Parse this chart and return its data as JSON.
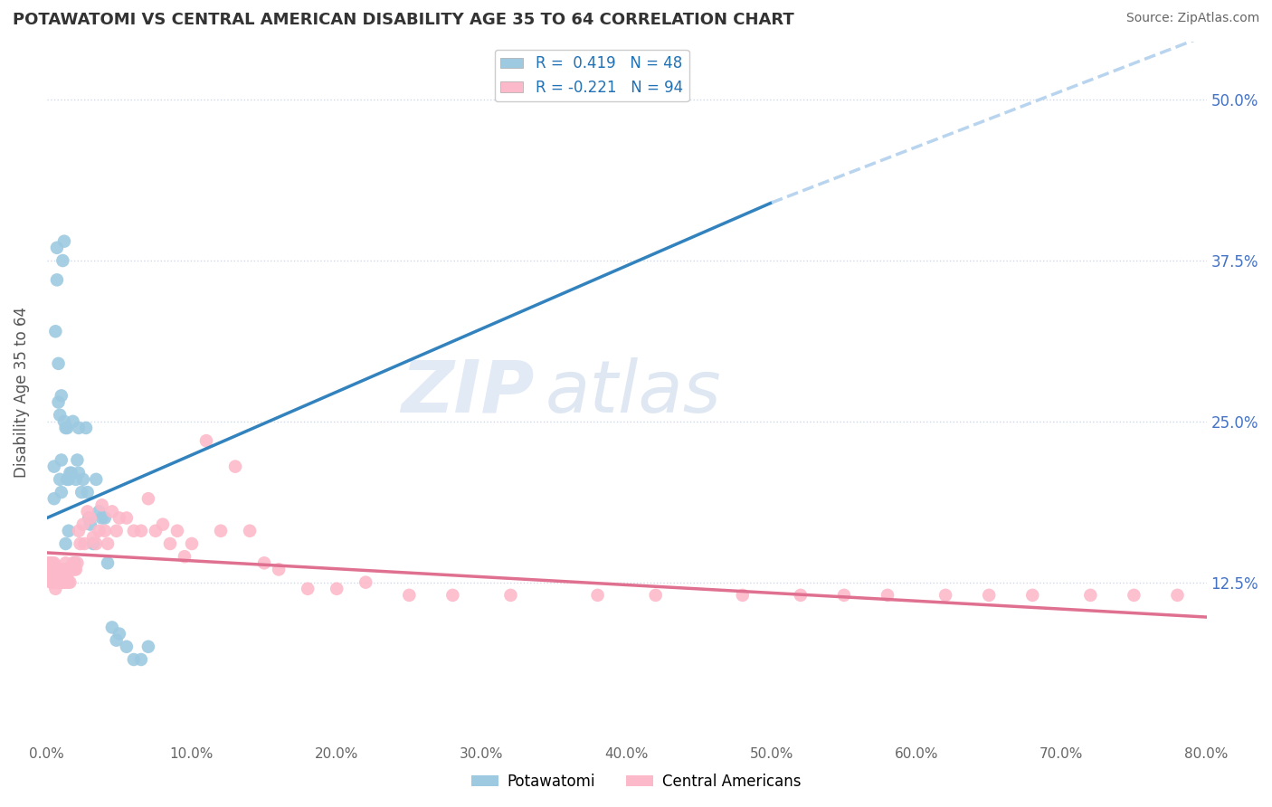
{
  "title": "POTAWATOMI VS CENTRAL AMERICAN DISABILITY AGE 35 TO 64 CORRELATION CHART",
  "source": "Source: ZipAtlas.com",
  "ylabel": "Disability Age 35 to 64",
  "ytick_labels": [
    "12.5%",
    "25.0%",
    "37.5%",
    "50.0%"
  ],
  "ytick_values": [
    0.125,
    0.25,
    0.375,
    0.5
  ],
  "xlim": [
    0.0,
    0.8
  ],
  "ylim": [
    0.0,
    0.545
  ],
  "r_potawatomi": 0.419,
  "n_potawatomi": 48,
  "r_central": -0.221,
  "n_central": 94,
  "blue_color": "#9ecae1",
  "pink_color": "#fcb9c9",
  "blue_line_color": "#3182bd",
  "pink_line_color": "#e07090",
  "dashed_line_color": "#b8d4ee",
  "grid_color": "#d0d8e8",
  "background_color": "#ffffff",
  "watermark_zip": "ZIP",
  "watermark_atlas": "atlas",
  "legend_label_blue": "Potawatomi",
  "legend_label_pink": "Central Americans",
  "potawatomi_x": [
    0.005,
    0.005,
    0.006,
    0.007,
    0.007,
    0.008,
    0.008,
    0.009,
    0.009,
    0.01,
    0.01,
    0.01,
    0.011,
    0.012,
    0.012,
    0.013,
    0.013,
    0.014,
    0.014,
    0.015,
    0.015,
    0.016,
    0.017,
    0.018,
    0.019,
    0.02,
    0.021,
    0.022,
    0.022,
    0.024,
    0.025,
    0.027,
    0.028,
    0.029,
    0.03,
    0.032,
    0.034,
    0.036,
    0.038,
    0.04,
    0.042,
    0.045,
    0.048,
    0.05,
    0.055,
    0.06,
    0.065,
    0.07
  ],
  "potawatomi_y": [
    0.19,
    0.215,
    0.32,
    0.36,
    0.385,
    0.295,
    0.265,
    0.255,
    0.205,
    0.195,
    0.22,
    0.27,
    0.375,
    0.25,
    0.39,
    0.155,
    0.245,
    0.245,
    0.205,
    0.205,
    0.165,
    0.21,
    0.21,
    0.25,
    0.14,
    0.205,
    0.22,
    0.21,
    0.245,
    0.195,
    0.205,
    0.245,
    0.195,
    0.175,
    0.17,
    0.155,
    0.205,
    0.18,
    0.175,
    0.175,
    0.14,
    0.09,
    0.08,
    0.085,
    0.075,
    0.065,
    0.065,
    0.075
  ],
  "central_x": [
    0.001,
    0.001,
    0.002,
    0.002,
    0.002,
    0.003,
    0.003,
    0.003,
    0.003,
    0.004,
    0.004,
    0.004,
    0.005,
    0.005,
    0.005,
    0.005,
    0.006,
    0.006,
    0.006,
    0.007,
    0.007,
    0.007,
    0.008,
    0.008,
    0.008,
    0.009,
    0.009,
    0.01,
    0.01,
    0.01,
    0.011,
    0.011,
    0.012,
    0.012,
    0.013,
    0.013,
    0.014,
    0.015,
    0.015,
    0.016,
    0.017,
    0.018,
    0.019,
    0.02,
    0.021,
    0.022,
    0.023,
    0.025,
    0.026,
    0.028,
    0.03,
    0.032,
    0.034,
    0.036,
    0.038,
    0.04,
    0.042,
    0.045,
    0.048,
    0.05,
    0.055,
    0.06,
    0.065,
    0.07,
    0.075,
    0.08,
    0.085,
    0.09,
    0.095,
    0.1,
    0.11,
    0.12,
    0.13,
    0.14,
    0.15,
    0.16,
    0.18,
    0.2,
    0.22,
    0.25,
    0.28,
    0.32,
    0.38,
    0.42,
    0.48,
    0.52,
    0.55,
    0.58,
    0.62,
    0.65,
    0.68,
    0.72,
    0.75,
    0.78
  ],
  "central_y": [
    0.135,
    0.14,
    0.13,
    0.135,
    0.14,
    0.125,
    0.13,
    0.135,
    0.14,
    0.125,
    0.13,
    0.14,
    0.125,
    0.13,
    0.135,
    0.14,
    0.12,
    0.13,
    0.135,
    0.125,
    0.13,
    0.135,
    0.125,
    0.13,
    0.135,
    0.125,
    0.13,
    0.125,
    0.13,
    0.135,
    0.125,
    0.13,
    0.125,
    0.135,
    0.125,
    0.14,
    0.13,
    0.125,
    0.135,
    0.125,
    0.135,
    0.14,
    0.135,
    0.135,
    0.14,
    0.165,
    0.155,
    0.17,
    0.155,
    0.18,
    0.175,
    0.16,
    0.155,
    0.165,
    0.185,
    0.165,
    0.155,
    0.18,
    0.165,
    0.175,
    0.175,
    0.165,
    0.165,
    0.19,
    0.165,
    0.17,
    0.155,
    0.165,
    0.145,
    0.155,
    0.235,
    0.165,
    0.215,
    0.165,
    0.14,
    0.135,
    0.12,
    0.12,
    0.125,
    0.115,
    0.115,
    0.115,
    0.115,
    0.115,
    0.115,
    0.115,
    0.115,
    0.115,
    0.115,
    0.115,
    0.115,
    0.115,
    0.115,
    0.115
  ],
  "blue_line_start_x": 0.0,
  "blue_line_start_y": 0.175,
  "blue_line_end_solid_x": 0.5,
  "blue_line_end_solid_y": 0.42,
  "blue_line_end_dashed_x": 0.8,
  "blue_line_end_dashed_y": 0.55,
  "pink_line_start_x": 0.0,
  "pink_line_start_y": 0.148,
  "pink_line_end_x": 0.8,
  "pink_line_end_y": 0.098
}
